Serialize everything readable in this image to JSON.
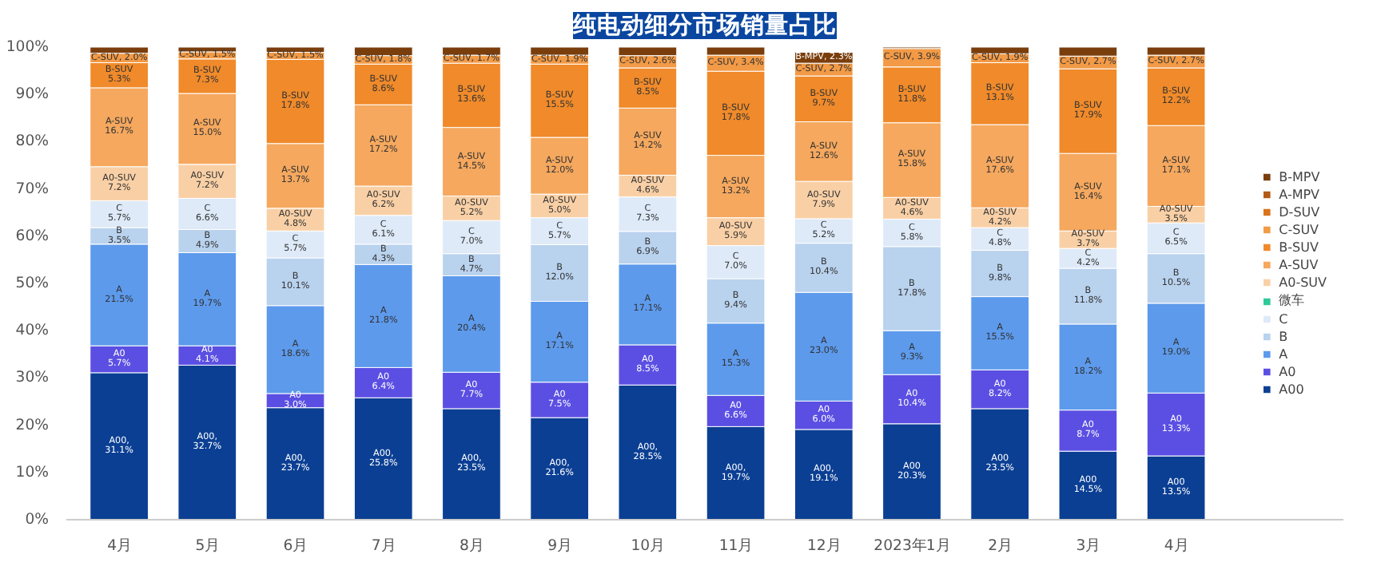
{
  "chart_data": {
    "type": "bar",
    "stacked": true,
    "title": "纯电动细分市场销量占比",
    "categories": [
      "4月",
      "5月",
      "6月",
      "7月",
      "8月",
      "9月",
      "10月",
      "11月",
      "12月",
      "2023年1月",
      "2月",
      "3月",
      "4月"
    ],
    "ylim": [
      0,
      100
    ],
    "yticks": [
      {
        "value": 0,
        "label": "0%"
      },
      {
        "value": 10,
        "label": "10%"
      },
      {
        "value": 20,
        "label": "20%"
      },
      {
        "value": 30,
        "label": "30%"
      },
      {
        "value": 40,
        "label": "40%"
      },
      {
        "value": 50,
        "label": "50%"
      },
      {
        "value": 60,
        "label": "60%"
      },
      {
        "value": 70,
        "label": "70%"
      },
      {
        "value": 80,
        "label": "80%"
      },
      {
        "value": 90,
        "label": "90%"
      },
      {
        "value": 100,
        "label": "100%"
      }
    ],
    "legend": "right",
    "grid": false,
    "series": [
      {
        "name": "A00",
        "color": "#0b3f93",
        "values": [
          31.1,
          32.7,
          23.7,
          25.8,
          23.5,
          21.6,
          28.5,
          19.7,
          19.1,
          20.3,
          23.5,
          14.5,
          13.5
        ],
        "value_labels": [
          "A00,\n31.1%",
          "A00,\n32.7%",
          "A00,\n23.7%",
          "A00,\n25.8%",
          "A00,\n23.5%",
          "A00,\n21.6%",
          "A00,\n28.5%",
          "A00,\n19.7%",
          "A00,\n19.1%",
          "A00\n20.3%",
          "A00\n23.5%",
          "A00\n14.5%",
          "A00\n13.5%"
        ]
      },
      {
        "name": "A0",
        "color": "#5b4fe3",
        "values": [
          5.7,
          4.1,
          3.0,
          6.4,
          7.7,
          7.5,
          8.5,
          6.6,
          6.0,
          10.4,
          8.2,
          8.7,
          13.3
        ],
        "value_labels": [
          "A0\n5.7%",
          "A0\n4.1%",
          "A0\n3.0%",
          "A0\n6.4%",
          "A0\n7.7%",
          "A0\n7.5%",
          "A0\n8.5%",
          "A0\n6.6%",
          "A0\n6.0%",
          "A0\n10.4%",
          "A0\n8.2%",
          "A0\n8.7%",
          "A0\n13.3%"
        ]
      },
      {
        "name": "A",
        "color": "#5d9aec",
        "values": [
          21.5,
          19.7,
          18.6,
          21.8,
          20.4,
          17.1,
          17.1,
          15.3,
          23.0,
          9.3,
          15.5,
          18.2,
          19.0
        ],
        "value_labels": [
          "A\n21.5%",
          "A\n19.7%",
          "A\n18.6%",
          "A\n21.8%",
          "A\n20.4%",
          "A\n17.1%",
          "A\n17.1%",
          "A\n15.3%",
          "A\n23.0%",
          "A\n9.3%",
          "A\n15.5%",
          "A\n18.2%",
          "A\n19.0%"
        ]
      },
      {
        "name": "B",
        "color": "#b9d2ee",
        "values": [
          3.5,
          4.9,
          10.1,
          4.3,
          4.7,
          12.0,
          6.9,
          9.4,
          10.4,
          17.8,
          9.8,
          11.8,
          10.5
        ],
        "value_labels": [
          "B\n3.5%",
          "B\n4.9%",
          "B\n10.1%",
          "B\n4.3%",
          "B\n4.7%",
          "B\n12.0%",
          "B\n6.9%",
          "B\n9.4%",
          "B\n10.4%",
          "B\n17.8%",
          "B\n9.8%",
          "B\n11.8%",
          "B\n10.5%"
        ]
      },
      {
        "name": "C",
        "color": "#deeaf8",
        "values": [
          5.7,
          6.6,
          5.7,
          6.1,
          7.0,
          5.7,
          7.3,
          7.0,
          5.2,
          5.8,
          4.8,
          4.2,
          6.5
        ],
        "value_labels": [
          "C\n5.7%",
          "C\n6.6%",
          "C\n5.7%",
          "C\n6.1%",
          "C\n7.0%",
          "C\n5.7%",
          "C\n7.3%",
          "C\n7.0%",
          "C\n5.2%",
          "C\n5.8%",
          "C\n4.8%",
          "C\n4.2%",
          "C\n6.5%"
        ]
      },
      {
        "name": "微车",
        "color": "#2ec99a",
        "values": [
          null,
          null,
          null,
          null,
          null,
          null,
          null,
          null,
          null,
          null,
          null,
          null,
          null
        ]
      },
      {
        "name": "A0-SUV",
        "color": "#f9d0a6",
        "values": [
          7.2,
          7.2,
          4.8,
          6.2,
          5.2,
          5.0,
          4.6,
          5.9,
          7.9,
          4.6,
          4.2,
          3.7,
          3.5
        ],
        "value_labels": [
          "A0-SUV\n7.2%",
          "A0-SUV\n7.2%",
          "A0-SUV\n4.8%",
          "A0-SUV\n6.2%",
          "A0-SUV\n5.2%",
          "A0-SUV\n5.0%",
          "A0-SUV\n4.6%",
          "A0-SUV\n5.9%",
          "A0-SUV\n7.9%",
          "A0-SUV\n4.6%",
          "A0-SUV\n4.2%",
          "A0-SUV\n3.7%",
          "A0-SUV\n3.5%"
        ]
      },
      {
        "name": "A-SUV",
        "color": "#f5a85e",
        "values": [
          16.7,
          15.0,
          13.7,
          17.2,
          14.5,
          12.0,
          14.2,
          13.2,
          12.6,
          15.8,
          17.6,
          16.4,
          17.1
        ],
        "value_labels": [
          "A-SUV\n16.7%",
          "A-SUV\n15.0%",
          "A-SUV\n13.7%",
          "A-SUV\n17.2%",
          "A-SUV\n14.5%",
          "A-SUV\n12.0%",
          "A-SUV\n14.2%",
          "A-SUV\n13.2%",
          "A-SUV\n12.6%",
          "A-SUV\n15.8%",
          "A-SUV\n17.6%",
          "A-SUV\n16.4%",
          "A-SUV\n17.1%"
        ]
      },
      {
        "name": "B-SUV",
        "color": "#f08a2a",
        "values": [
          5.3,
          7.3,
          17.8,
          8.6,
          13.6,
          15.5,
          8.5,
          17.8,
          9.7,
          11.8,
          13.1,
          17.9,
          12.2
        ],
        "value_labels": [
          "B-SUV\n5.3%",
          "B-SUV\n7.3%",
          "B-SUV\n17.8%",
          "B-SUV\n8.6%",
          "B-SUV\n13.6%",
          "B-SUV\n15.5%",
          "B-SUV\n8.5%",
          "B-SUV\n17.8%",
          "B-SUV\n9.7%",
          "B-SUV\n11.8%",
          "B-SUV\n13.1%",
          "B-SUV\n17.9%",
          "B-SUV\n12.2%"
        ]
      },
      {
        "name": "C-SUV",
        "color": "#f29a46",
        "values": [
          2.0,
          1.5,
          1.5,
          1.8,
          1.7,
          1.9,
          2.6,
          3.4,
          2.7,
          3.9,
          1.9,
          2.7,
          2.7
        ],
        "value_labels": [
          "C-SUV, 2.0%",
          "C-SUV, 1.5%",
          "C-SUV, 1.5%",
          "C-SUV, 1.8%",
          "C-SUV, 1.7%",
          "C-SUV, 1.9%",
          "C-SUV, 2.6%",
          "C-SUV, 3.4%",
          "C-SUV, 2.7%",
          "C-SUV, 3.9%",
          "C-SUV, 1.9%",
          "C-SUV, 2.7%",
          "C-SUV, 2.7%"
        ]
      },
      {
        "name": "D-SUV",
        "color": "#d9731c",
        "values": [
          null,
          null,
          null,
          null,
          null,
          null,
          null,
          null,
          null,
          null,
          null,
          null,
          null
        ]
      },
      {
        "name": "A-MPV",
        "color": "#b35a14",
        "values": [
          null,
          null,
          null,
          null,
          null,
          null,
          null,
          null,
          null,
          null,
          null,
          null,
          null
        ]
      },
      {
        "name": "B-MPV",
        "color": "#7a3e0c",
        "values": [
          1.3,
          1.0,
          1.1,
          1.8,
          1.7,
          1.7,
          1.8,
          1.7,
          2.3,
          0.3,
          1.4,
          1.9,
          1.7
        ],
        "value_labels": [
          null,
          null,
          null,
          null,
          null,
          null,
          null,
          null,
          "B-MPV, 2.3%",
          null,
          null,
          null,
          null
        ]
      }
    ]
  }
}
